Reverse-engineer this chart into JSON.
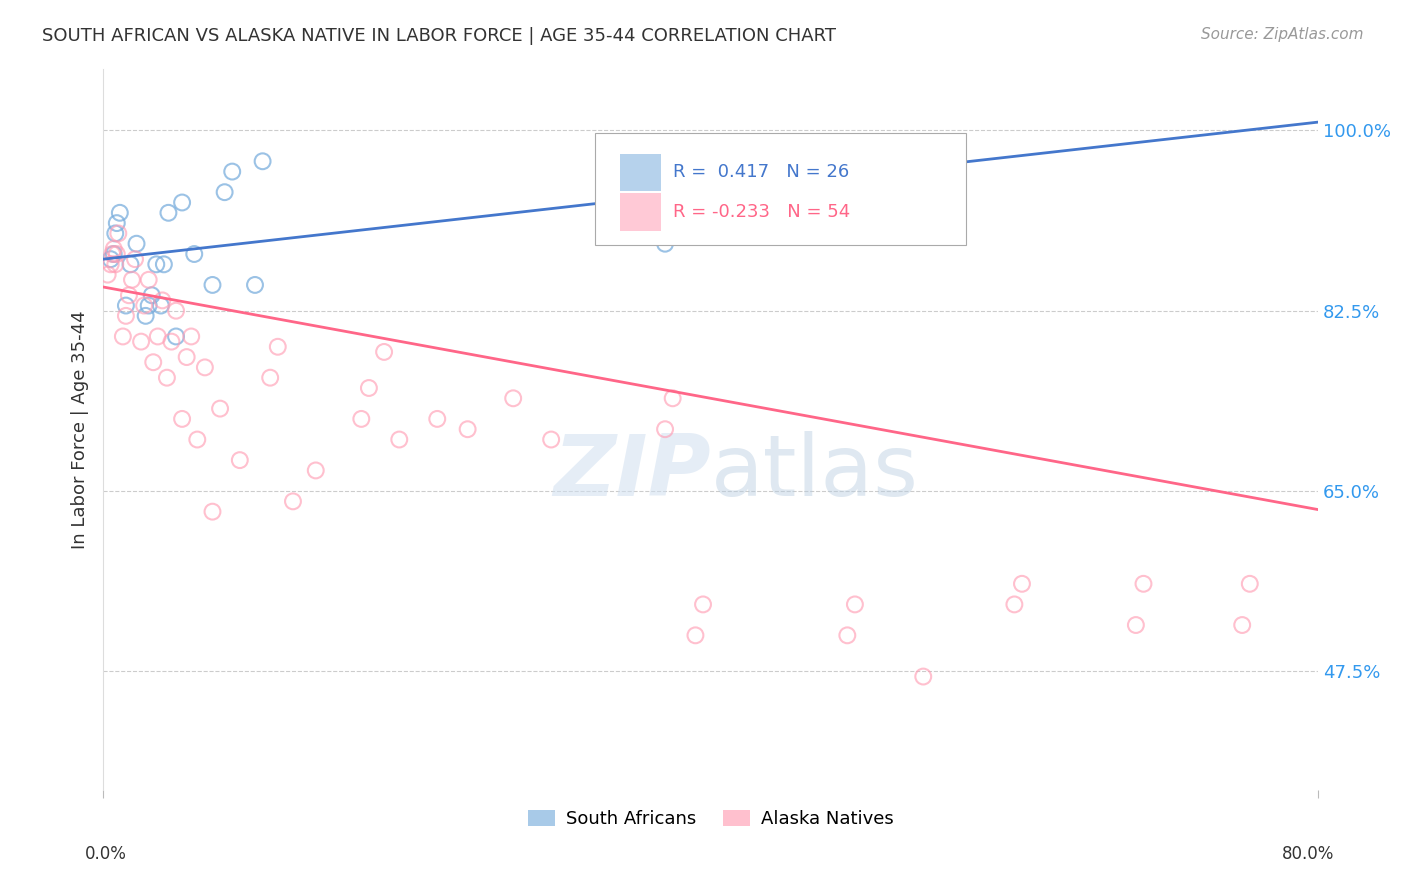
{
  "title": "SOUTH AFRICAN VS ALASKA NATIVE IN LABOR FORCE | AGE 35-44 CORRELATION CHART",
  "source": "Source: ZipAtlas.com",
  "ylabel": "In Labor Force | Age 35-44",
  "yticks": [
    0.475,
    0.65,
    0.825,
    1.0
  ],
  "ytick_labels": [
    "47.5%",
    "65.0%",
    "82.5%",
    "100.0%"
  ],
  "legend_blue_label": "South Africans",
  "legend_pink_label": "Alaska Natives",
  "R_blue": "0.417",
  "N_blue": "26",
  "R_pink": "-0.233",
  "N_pink": "54",
  "blue_color": "#7aaedd",
  "pink_color": "#ff9eb5",
  "blue_line_color": "#4477cc",
  "pink_line_color": "#ff6688",
  "xmin": 0.0,
  "xmax": 0.8,
  "ymin": 0.36,
  "ymax": 1.06,
  "blue_line_x": [
    0.0,
    0.8
  ],
  "blue_line_y": [
    0.875,
    1.008
  ],
  "pink_line_x": [
    0.0,
    0.8
  ],
  "pink_line_y": [
    0.848,
    0.632
  ],
  "blue_scatter_x": [
    0.005,
    0.007,
    0.008,
    0.009,
    0.011,
    0.015,
    0.018,
    0.022,
    0.028,
    0.03,
    0.032,
    0.035,
    0.038,
    0.04,
    0.043,
    0.048,
    0.052,
    0.06,
    0.072,
    0.08,
    0.085,
    0.1,
    0.105,
    0.37,
    0.5,
    0.505
  ],
  "blue_scatter_y": [
    0.875,
    0.88,
    0.9,
    0.91,
    0.92,
    0.83,
    0.87,
    0.89,
    0.82,
    0.83,
    0.84,
    0.87,
    0.83,
    0.87,
    0.92,
    0.8,
    0.93,
    0.88,
    0.85,
    0.94,
    0.96,
    0.85,
    0.97,
    0.89,
    0.91,
    0.96
  ],
  "pink_scatter_x": [
    0.003,
    0.005,
    0.006,
    0.007,
    0.008,
    0.009,
    0.01,
    0.013,
    0.015,
    0.017,
    0.019,
    0.021,
    0.025,
    0.027,
    0.03,
    0.033,
    0.036,
    0.039,
    0.042,
    0.045,
    0.048,
    0.052,
    0.055,
    0.058,
    0.062,
    0.067,
    0.072,
    0.077,
    0.09,
    0.11,
    0.115,
    0.125,
    0.14,
    0.17,
    0.175,
    0.185,
    0.195,
    0.22,
    0.24,
    0.27,
    0.295,
    0.37,
    0.375,
    0.39,
    0.395,
    0.49,
    0.495,
    0.54,
    0.6,
    0.605,
    0.68,
    0.685,
    0.75,
    0.755
  ],
  "pink_scatter_y": [
    0.86,
    0.87,
    0.88,
    0.885,
    0.87,
    0.88,
    0.9,
    0.8,
    0.82,
    0.84,
    0.855,
    0.875,
    0.795,
    0.83,
    0.855,
    0.775,
    0.8,
    0.835,
    0.76,
    0.795,
    0.825,
    0.72,
    0.78,
    0.8,
    0.7,
    0.77,
    0.63,
    0.73,
    0.68,
    0.76,
    0.79,
    0.64,
    0.67,
    0.72,
    0.75,
    0.785,
    0.7,
    0.72,
    0.71,
    0.74,
    0.7,
    0.71,
    0.74,
    0.51,
    0.54,
    0.51,
    0.54,
    0.47,
    0.54,
    0.56,
    0.52,
    0.56,
    0.52,
    0.56
  ]
}
